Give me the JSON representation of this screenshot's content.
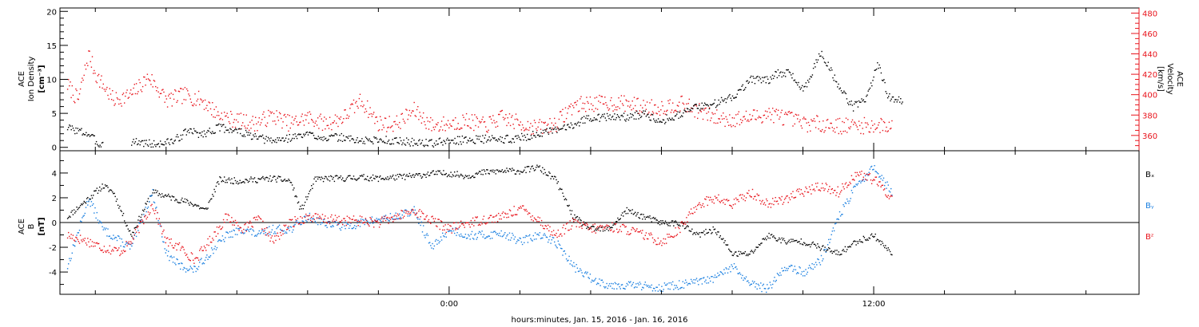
{
  "colors": {
    "black": "#000000",
    "red": "#e8141c",
    "blue": "#1a7fe0"
  },
  "xaxis": {
    "label": "hours:minutes, Jan. 15, 2016 - Jan. 16, 2016",
    "range_hours": [
      -11,
      19.5
    ],
    "major_ticks": [
      {
        "at": 0,
        "label": "0:00"
      },
      {
        "at": 12,
        "label": "12:00"
      }
    ],
    "minor_step_hours": 2
  },
  "chart_data": [
    {
      "type": "scatter",
      "panel": "ion-density-velocity",
      "ylabel_left": [
        "ACE",
        "Ion Density",
        "[cm⁻³]"
      ],
      "ylabel_right": [
        "ACE",
        "Velocity",
        "[km/s]"
      ],
      "ylim_left": [
        -0.5,
        20.5
      ],
      "ylim_right": [
        345,
        485
      ],
      "yticks_left": [
        0,
        5,
        10,
        15,
        20
      ],
      "yticks_right": [
        360,
        380,
        400,
        420,
        440,
        460,
        480
      ],
      "series": [
        {
          "color": "black",
          "axis": "left",
          "x": [
            -10.8,
            -10.2,
            -9.9,
            -9.4,
            -9.0,
            -8.3,
            -7.8,
            -7.4,
            -7.0,
            -6.5,
            -6.0,
            -5.5,
            -5.0,
            -4.5,
            -4.0,
            -3.5,
            -3.0,
            -2.5,
            -2.0,
            -1.5,
            -1.0,
            -0.5,
            0.0,
            0.5,
            1.0,
            1.5,
            2.0,
            2.5,
            3.0,
            3.5,
            4.0,
            4.5,
            5.0,
            5.5,
            6.0,
            6.5,
            7.0,
            7.5,
            8.0,
            8.5,
            9.0,
            9.3,
            9.6,
            10.0,
            10.5,
            11.0,
            11.4,
            11.8,
            12.1,
            12.4,
            12.8
          ],
          "y": [
            3.0,
            2.0,
            0.5,
            1.0,
            1.0,
            0.5,
            1.0,
            2.5,
            2.0,
            3.0,
            2.5,
            1.5,
            1.0,
            1.5,
            2.0,
            1.5,
            1.5,
            1.0,
            1.2,
            1.0,
            0.8,
            0.7,
            1.0,
            1.2,
            1.3,
            1.2,
            1.5,
            2.0,
            2.5,
            3.5,
            4.5,
            4.5,
            4.5,
            5.0,
            4.0,
            5.0,
            6.0,
            6.5,
            7.5,
            10.0,
            10.0,
            11.0,
            11.0,
            8.5,
            14.0,
            9.0,
            6.0,
            7.5,
            12.5,
            7.5,
            7.0
          ]
        },
        {
          "color": "red",
          "axis": "right",
          "x": [
            -10.8,
            -10.5,
            -10.2,
            -10.0,
            -9.5,
            -9.0,
            -8.5,
            -8.0,
            -7.5,
            -7.0,
            -6.5,
            -6.0,
            -5.5,
            -5.0,
            -4.5,
            -4.0,
            -3.5,
            -3.0,
            -2.5,
            -2.0,
            -1.5,
            -1.0,
            -0.5,
            0.0,
            0.5,
            1.0,
            1.5,
            2.0,
            2.5,
            3.0,
            3.5,
            4.0,
            4.5,
            5.0,
            5.5,
            6.0,
            6.5,
            7.0,
            7.5,
            8.0,
            8.5,
            9.0,
            9.5,
            10.0,
            10.5,
            11.0,
            11.5,
            12.0,
            12.5
          ],
          "y": [
            410,
            395,
            440,
            420,
            395,
            400,
            418,
            395,
            400,
            395,
            380,
            375,
            372,
            380,
            372,
            378,
            372,
            378,
            395,
            372,
            372,
            385,
            370,
            372,
            375,
            370,
            378,
            372,
            368,
            372,
            390,
            392,
            392,
            392,
            388,
            388,
            392,
            385,
            378,
            376,
            378,
            382,
            378,
            372,
            372,
            370,
            370,
            370,
            370
          ]
        }
      ]
    },
    {
      "type": "scatter",
      "panel": "magnetic-field",
      "ylabel_left": [
        "ACE",
        "B",
        "[nT]"
      ],
      "ylim_left": [
        -5.8,
        5.8
      ],
      "yticks_left": [
        -4,
        -2,
        0,
        2,
        4
      ],
      "zero_line": true,
      "series": [
        {
          "name": "Bₓ",
          "color": "black",
          "x": [
            -10.8,
            -10.2,
            -9.8,
            -9.5,
            -9.0,
            -8.4,
            -7.8,
            -7.2,
            -6.9,
            -6.5,
            -6.0,
            -5.5,
            -5.0,
            -4.5,
            -4.2,
            -3.8,
            -3.5,
            -3.0,
            -2.5,
            -2.0,
            -1.5,
            -1.0,
            -0.5,
            0.0,
            0.5,
            1.0,
            1.5,
            2.0,
            2.5,
            3.0,
            3.5,
            4.0,
            4.5,
            5.0,
            5.5,
            6.0,
            6.5,
            7.0,
            7.5,
            8.0,
            8.5,
            9.0,
            9.5,
            10.0,
            10.5,
            11.0,
            11.5,
            12.0,
            12.5
          ],
          "y": [
            0.5,
            2.0,
            3.0,
            2.5,
            -1.0,
            2.5,
            2.0,
            1.5,
            1.0,
            3.5,
            3.4,
            3.5,
            3.6,
            3.4,
            1.0,
            3.5,
            3.6,
            3.6,
            3.7,
            3.6,
            3.7,
            3.8,
            4.0,
            4.0,
            3.8,
            4.1,
            4.2,
            4.2,
            4.5,
            3.5,
            0.5,
            -0.5,
            -0.5,
            1.0,
            0.5,
            0.0,
            0.0,
            -1.0,
            -0.5,
            -2.5,
            -2.5,
            -1.0,
            -1.5,
            -1.5,
            -2.0,
            -2.5,
            -1.5,
            -1.0,
            -2.5
          ]
        },
        {
          "name": "Bᵧ",
          "color": "blue",
          "x": [
            -10.8,
            -10.2,
            -9.8,
            -9.3,
            -9.0,
            -8.4,
            -8.0,
            -7.6,
            -7.2,
            -6.8,
            -6.3,
            -5.8,
            -5.4,
            -5.0,
            -4.5,
            -4.0,
            -3.5,
            -3.0,
            -2.5,
            -2.0,
            -1.5,
            -1.0,
            -0.5,
            0.0,
            0.5,
            1.0,
            1.5,
            2.0,
            2.5,
            3.0,
            3.5,
            4.0,
            4.5,
            5.0,
            5.5,
            6.0,
            6.5,
            7.0,
            7.5,
            8.0,
            8.5,
            9.0,
            9.5,
            10.0,
            10.5,
            11.0,
            11.5,
            12.0,
            12.5
          ],
          "y": [
            -3.5,
            2.0,
            -0.5,
            -1.5,
            -2.0,
            2.5,
            -2.5,
            -3.5,
            -3.8,
            -2.5,
            -1.0,
            -0.5,
            -1.0,
            -0.5,
            -0.5,
            0.5,
            0.0,
            -0.3,
            0.0,
            0.3,
            0.5,
            1.0,
            -2.0,
            -0.5,
            -1.0,
            -1.0,
            -0.8,
            -1.5,
            -1.0,
            -1.5,
            -3.5,
            -4.5,
            -5.0,
            -5.0,
            -5.1,
            -5.2,
            -5.0,
            -4.8,
            -4.5,
            -3.5,
            -5.0,
            -5.3,
            -3.5,
            -4.0,
            -3.0,
            0.5,
            3.0,
            4.5,
            2.5
          ]
        },
        {
          "name": "Bᶻ",
          "color": "red",
          "x": [
            -10.8,
            -10.2,
            -9.8,
            -9.3,
            -9.0,
            -8.4,
            -8.0,
            -7.6,
            -7.2,
            -6.8,
            -6.3,
            -5.8,
            -5.4,
            -5.0,
            -4.5,
            -4.0,
            -3.5,
            -3.0,
            -2.5,
            -2.0,
            -1.5,
            -1.0,
            -0.5,
            0.0,
            0.5,
            1.0,
            1.5,
            2.0,
            2.5,
            3.0,
            3.5,
            4.0,
            4.5,
            5.0,
            5.5,
            6.0,
            6.5,
            7.0,
            7.5,
            8.0,
            8.5,
            9.0,
            9.5,
            10.0,
            10.5,
            11.0,
            11.5,
            12.0,
            12.5
          ],
          "y": [
            -1.0,
            -1.5,
            -2.0,
            -2.3,
            -1.5,
            1.5,
            -1.5,
            -2.0,
            -3.0,
            -1.5,
            0.5,
            -0.5,
            0.3,
            -1.5,
            0.0,
            0.5,
            0.3,
            0.2,
            0.2,
            0.0,
            0.5,
            1.0,
            0.2,
            -0.5,
            0.0,
            0.3,
            0.5,
            1.2,
            0.3,
            -1.0,
            0.0,
            -0.5,
            -0.3,
            -0.5,
            -1.0,
            -1.5,
            -0.5,
            1.5,
            2.0,
            1.5,
            2.5,
            1.5,
            2.0,
            2.5,
            3.0,
            2.5,
            4.0,
            3.5,
            2.0
          ]
        }
      ]
    }
  ]
}
